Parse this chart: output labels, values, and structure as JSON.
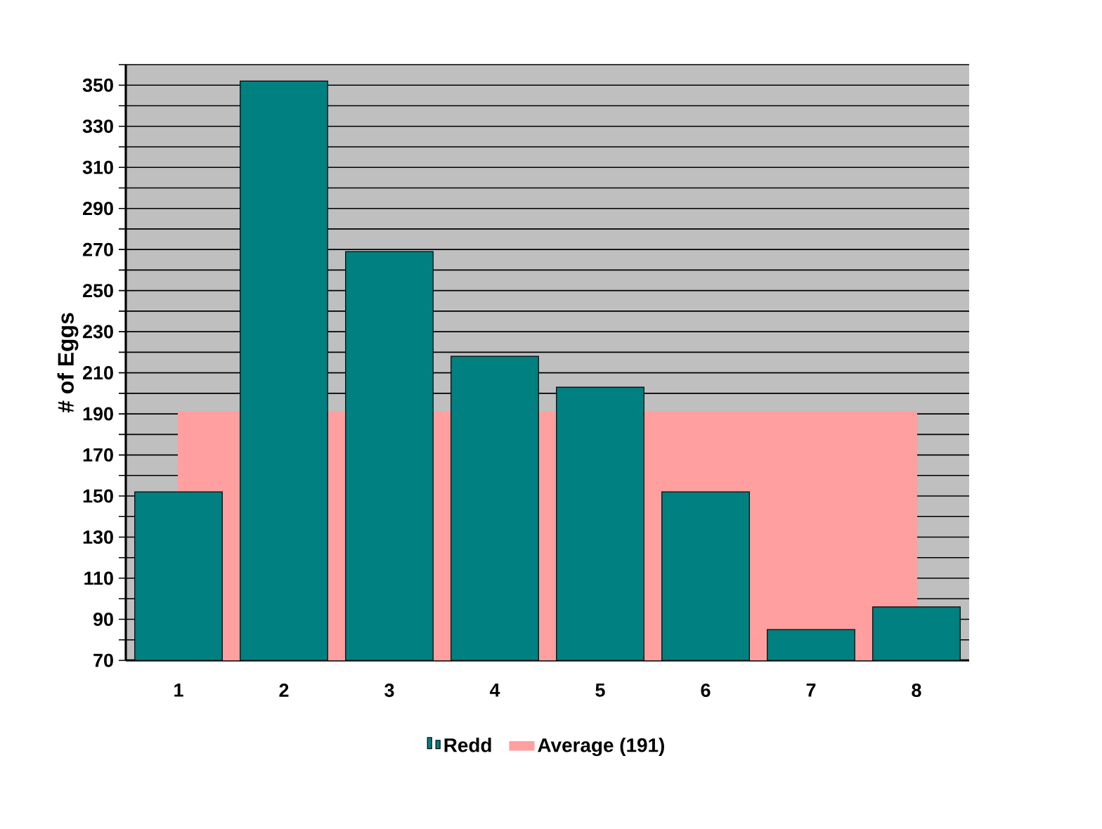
{
  "chart_data": {
    "type": "bar",
    "ylabel": "# of Eggs",
    "categories": [
      "1",
      "2",
      "3",
      "4",
      "5",
      "6",
      "7",
      "8"
    ],
    "series": [
      {
        "name": "Redd",
        "color": "#008080",
        "values": [
          152,
          352,
          269,
          218,
          203,
          152,
          85,
          96
        ]
      },
      {
        "name": "Average (191)",
        "type": "area",
        "color": "#ff9f9f",
        "x": [
          "1",
          "8"
        ],
        "values": [
          191,
          191
        ]
      }
    ],
    "ylim": [
      70,
      360
    ],
    "yticks": [
      70,
      {
        "value": 80,
        "label": null
      },
      90,
      {
        "value": 100,
        "label": null
      },
      110,
      {
        "value": 120,
        "label": null
      },
      130,
      {
        "value": 140,
        "label": null
      },
      150,
      {
        "value": 160,
        "label": null
      },
      170,
      {
        "value": 180,
        "label": null
      },
      190,
      {
        "value": 200,
        "label": null
      },
      210,
      {
        "value": 220,
        "label": null
      },
      230,
      {
        "value": 240,
        "label": null
      },
      250,
      {
        "value": 260,
        "label": null
      },
      270,
      {
        "value": 280,
        "label": null
      },
      290,
      {
        "value": 300,
        "label": null
      },
      310,
      {
        "value": 320,
        "label": null
      },
      330,
      {
        "value": 340,
        "label": null
      },
      350,
      {
        "value": 360,
        "label": null
      }
    ],
    "grid": "y",
    "legend": "bottom"
  }
}
